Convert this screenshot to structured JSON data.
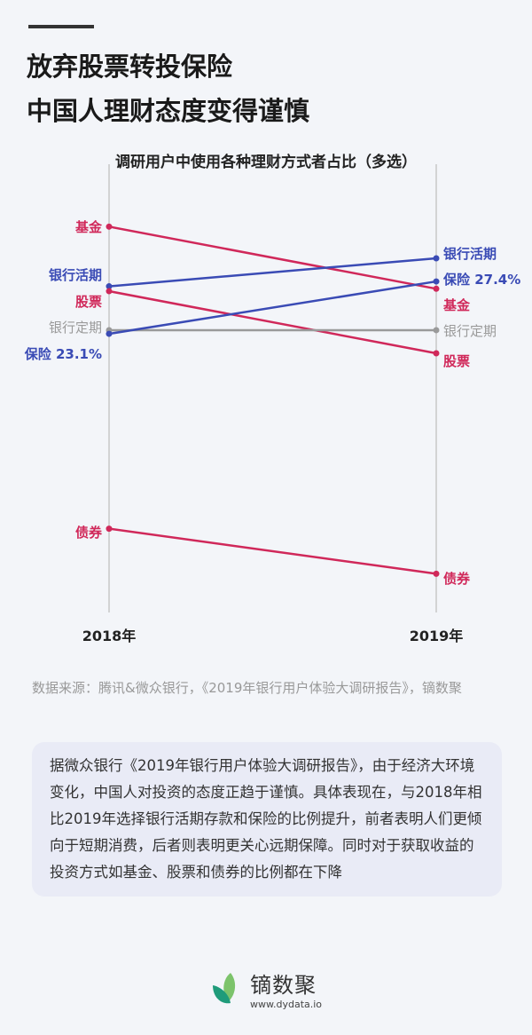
{
  "title_lines": [
    "放弃股票转投保险",
    "中国人理财态度变得谨慎"
  ],
  "chart_data": {
    "type": "slope",
    "title": "调研用户中使用各种理财方式者占比（多选）",
    "categories": [
      "2018年",
      "2019年"
    ],
    "ylim": [
      0,
      32
    ],
    "series": [
      {
        "name": "基金",
        "values": [
          31.9,
          26.8
        ],
        "color": "#d0285a"
      },
      {
        "name": "银行活期",
        "values": [
          27.0,
          29.3
        ],
        "color": "#3a4bb5"
      },
      {
        "name": "股票",
        "values": [
          26.6,
          21.5
        ],
        "color": "#d0285a"
      },
      {
        "name": "银行定期",
        "values": [
          23.4,
          23.4
        ],
        "color": "#9a9a9a"
      },
      {
        "name": "保险",
        "values": [
          23.1,
          27.4
        ],
        "color": "#3a4bb5"
      },
      {
        "name": "债券",
        "values": [
          7.1,
          3.4
        ],
        "color": "#d0285a"
      }
    ],
    "labels_left": [
      "基金",
      "银行活期",
      "股票",
      "银行定期",
      "保险 23.1%",
      "债券"
    ],
    "labels_right": [
      "基金",
      "银行活期",
      "股票",
      "银行定期",
      "保险 27.4%",
      "债券"
    ]
  },
  "source": "数据来源：腾讯&微众银行，《2019年银行用户体验大调研报告》，镝数聚",
  "description": "据微众银行《2019年银行用户体验大调研报告》，由于经济大环境变化，中国人对投资的态度正趋于谨慎。具体表现在，与2018年相比2019年选择银行活期存款和保险的比例提升，前者表明人们更倾向于短期消费，后者则表明更关心远期保障。同时对于获取收益的投资方式如基金、股票和债券的比例都在下降",
  "logo": {
    "name": "镝数聚",
    "url": "www.dydata.io"
  }
}
